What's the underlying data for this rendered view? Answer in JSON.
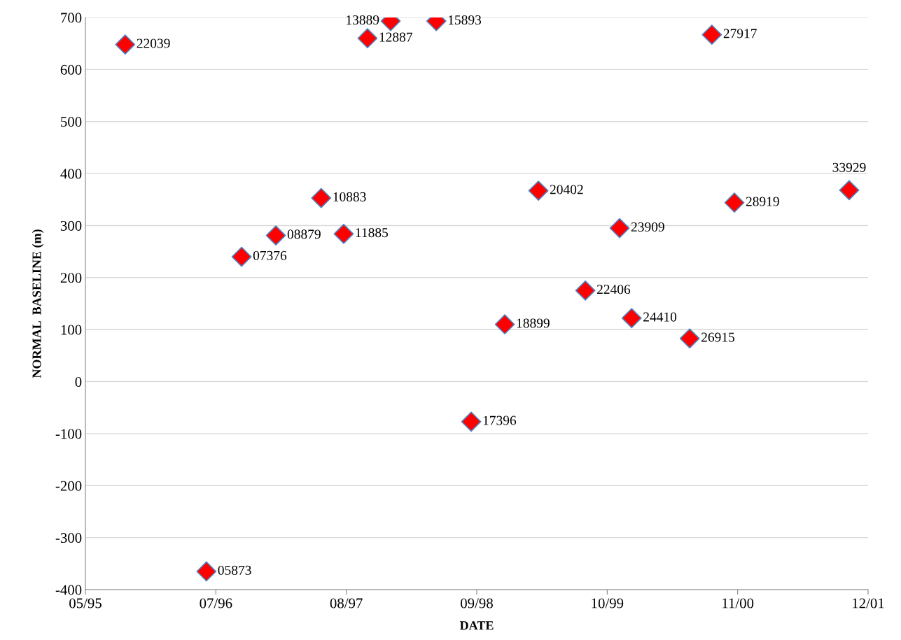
{
  "chart_data": {
    "type": "scatter",
    "xlabel": "DATE",
    "ylabel": "NORMAL  BASELINE (m)",
    "x": [
      "1995-09-29",
      "1996-06-04",
      "1996-09-20",
      "1997-01-03",
      "1997-05-22",
      "1997-07-30",
      "1997-10-11",
      "1997-12-21",
      "1998-05-10",
      "1998-08-25",
      "1998-12-06",
      "1999-03-19",
      "1999-08-10",
      "1999-11-23",
      "1999-12-30",
      "2000-06-25",
      "2000-09-01",
      "2000-11-09",
      "2001-10-27"
    ],
    "series": [
      {
        "color": "#ff0000",
        "values": [
          648,
          -365,
          240,
          281,
          353,
          284,
          660,
          693,
          693,
          -77,
          110,
          367,
          175,
          295,
          122,
          83,
          667,
          344,
          368
        ]
      }
    ],
    "marker": "diamond",
    "grid": "y",
    "annotations": [
      {
        "text": "22039",
        "x": "1995-09-29",
        "y": 648
      },
      {
        "text": "05873",
        "x": "1996-06-04",
        "y": -365
      },
      {
        "text": "07376",
        "x": "1996-09-20",
        "y": 240
      },
      {
        "text": "08879",
        "x": "1997-01-03",
        "y": 281
      },
      {
        "text": "10883",
        "x": "1997-05-22",
        "y": 353
      },
      {
        "text": "11885",
        "x": "1997-07-30",
        "y": 284
      },
      {
        "text": "12887",
        "x": "1997-10-11",
        "y": 660
      },
      {
        "text": "13889",
        "x": "1997-12-21",
        "y": 693
      },
      {
        "text": "15893",
        "x": "1998-05-10",
        "y": 693
      },
      {
        "text": "17396",
        "x": "1998-08-25",
        "y": -77
      },
      {
        "text": "18899",
        "x": "1998-12-06",
        "y": 110
      },
      {
        "text": "20402",
        "x": "1999-03-19",
        "y": 367
      },
      {
        "text": "22406",
        "x": "1999-08-10",
        "y": 175
      },
      {
        "text": "23909",
        "x": "1999-11-23",
        "y": 295
      },
      {
        "text": "24410",
        "x": "1999-12-30",
        "y": 122
      },
      {
        "text": "26915",
        "x": "2000-06-25",
        "y": 83
      },
      {
        "text": "27917",
        "x": "2000-09-01",
        "y": 667
      },
      {
        "text": "28919",
        "x": "2000-11-09",
        "y": 344
      },
      {
        "text": "33929",
        "x": "2001-10-27",
        "y": 368
      }
    ],
    "xlim": [
      "1995-05-30",
      "2001-12-24"
    ],
    "xticks": [
      {
        "value": "1995-05-30",
        "label": "05/95"
      },
      {
        "value": "1996-07-03",
        "label": "07/96"
      },
      {
        "value": "1997-08-07",
        "label": "08/97"
      },
      {
        "value": "1998-09-11",
        "label": "09/98"
      },
      {
        "value": "1999-10-16",
        "label": "10/99"
      },
      {
        "value": "2000-11-19",
        "label": "11/00"
      },
      {
        "value": "2001-12-24",
        "label": "12/01"
      }
    ],
    "ylim": [
      -400,
      700
    ],
    "yticks": [
      -400,
      -300,
      -200,
      -100,
      0,
      100,
      200,
      300,
      400,
      500,
      600,
      700
    ]
  }
}
